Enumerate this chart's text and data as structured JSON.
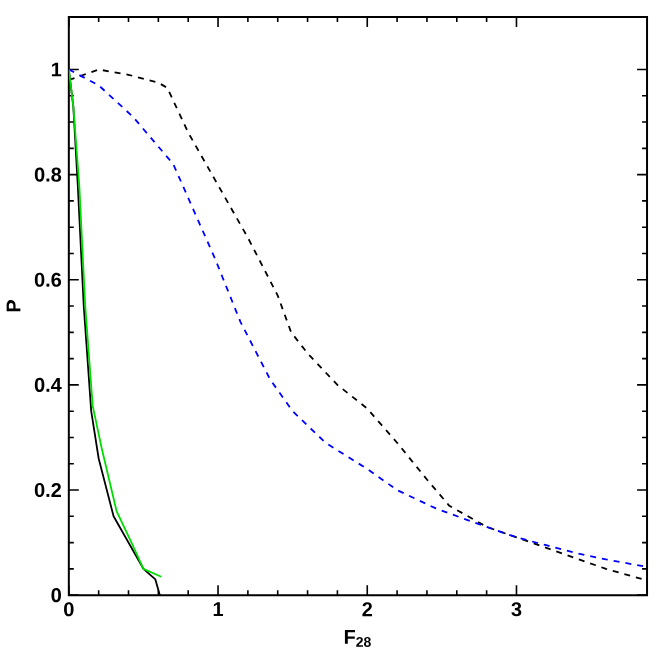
{
  "chart_data": {
    "type": "line",
    "xlabel": "F$_{28}$",
    "ylabel": "P",
    "xlim": [
      0,
      3.875
    ],
    "ylim": [
      0,
      1.1
    ],
    "xticks": [
      0,
      1,
      2,
      3
    ],
    "yticks": [
      0,
      0.2,
      0.4,
      0.6,
      0.8,
      1
    ],
    "grid": false,
    "marker": "none",
    "series": [
      {
        "color": "#000000",
        "line_style": "dashed",
        "x": [
          0,
          0.1,
          0.2,
          0.4,
          0.6,
          0.66,
          0.8,
          0.98,
          1.2,
          1.4,
          1.49,
          1.6,
          1.8,
          2.0,
          2.2,
          2.4,
          2.55,
          2.8,
          3.0,
          3.2,
          3.4,
          3.6,
          3.85
        ],
        "values": [
          0.98,
          0.99,
          1.0,
          0.99,
          0.975,
          0.965,
          0.88,
          0.79,
          0.68,
          0.57,
          0.5,
          0.46,
          0.4,
          0.355,
          0.29,
          0.22,
          0.17,
          0.13,
          0.11,
          0.09,
          0.07,
          0.05,
          0.03
        ]
      },
      {
        "color": "#0000ff",
        "line_style": "dashed",
        "x": [
          0,
          0.2,
          0.43,
          0.7,
          0.98,
          1.15,
          1.35,
          1.5,
          1.72,
          2.0,
          2.2,
          2.46,
          2.7,
          3.0,
          3.2,
          3.4,
          3.6,
          3.85
        ],
        "values": [
          1.0,
          0.97,
          0.91,
          0.82,
          0.64,
          0.52,
          0.41,
          0.35,
          0.29,
          0.24,
          0.2,
          0.165,
          0.14,
          0.11,
          0.095,
          0.08,
          0.068,
          0.055
        ]
      },
      {
        "color": "#000000",
        "line_style": "solid",
        "x": [
          0,
          0.03,
          0.06,
          0.1,
          0.15,
          0.2,
          0.3,
          0.4,
          0.5,
          0.58,
          0.61
        ],
        "values": [
          1.0,
          0.93,
          0.78,
          0.55,
          0.35,
          0.26,
          0.15,
          0.1,
          0.05,
          0.03,
          0.0
        ]
      },
      {
        "color": "#00dd00",
        "line_style": "solid",
        "x": [
          0,
          0.03,
          0.07,
          0.11,
          0.16,
          0.22,
          0.32,
          0.42,
          0.5,
          0.62
        ],
        "values": [
          1.0,
          0.93,
          0.78,
          0.55,
          0.36,
          0.28,
          0.16,
          0.1,
          0.05,
          0.035
        ]
      }
    ]
  }
}
